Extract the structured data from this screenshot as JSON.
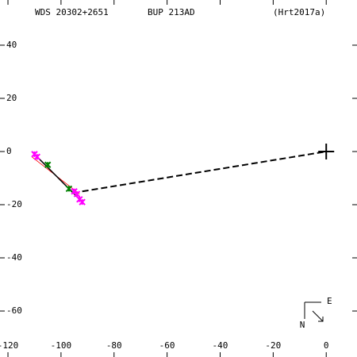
{
  "chart_data": {
    "type": "scatter",
    "title": "WDS 20302+2651",
    "subtitle": "BUP 213AD",
    "reference": "(Hrt2017a)",
    "xlim": [
      -123,
      11.6
    ],
    "ylim": [
      -77.3,
      57
    ],
    "xticks": [
      -120,
      -100,
      -80,
      -60,
      -40,
      -20,
      0
    ],
    "yticks": [
      40,
      20,
      0,
      -20,
      -40,
      -60
    ],
    "series": [
      {
        "mode": "dashed",
        "color": "#000000",
        "x": [
          -92,
          0
        ],
        "values": [
          -15,
          0
        ]
      },
      {
        "mode": "line",
        "color": "#ff0000",
        "x": [
          -111,
          -93
        ],
        "values": [
          -2,
          -16
        ]
      },
      {
        "mode": "line",
        "color": "#000000",
        "x": [
          -110,
          -92
        ],
        "values": [
          -1,
          -19
        ]
      },
      {
        "mode": "points",
        "color": "#ff00ff",
        "x": [
          -110,
          -109,
          -95,
          -94,
          -93,
          -92
        ],
        "values": [
          -1,
          -2,
          -15,
          -16,
          -18,
          -19
        ]
      },
      {
        "mode": "points",
        "color": "#008000",
        "x": [
          -105,
          -97
        ],
        "values": [
          -5,
          -14
        ]
      },
      {
        "mode": "plus",
        "color": "#000000",
        "x": [
          0
        ],
        "values": [
          0
        ]
      }
    ],
    "compass": {
      "east": "E",
      "north": "N"
    }
  }
}
